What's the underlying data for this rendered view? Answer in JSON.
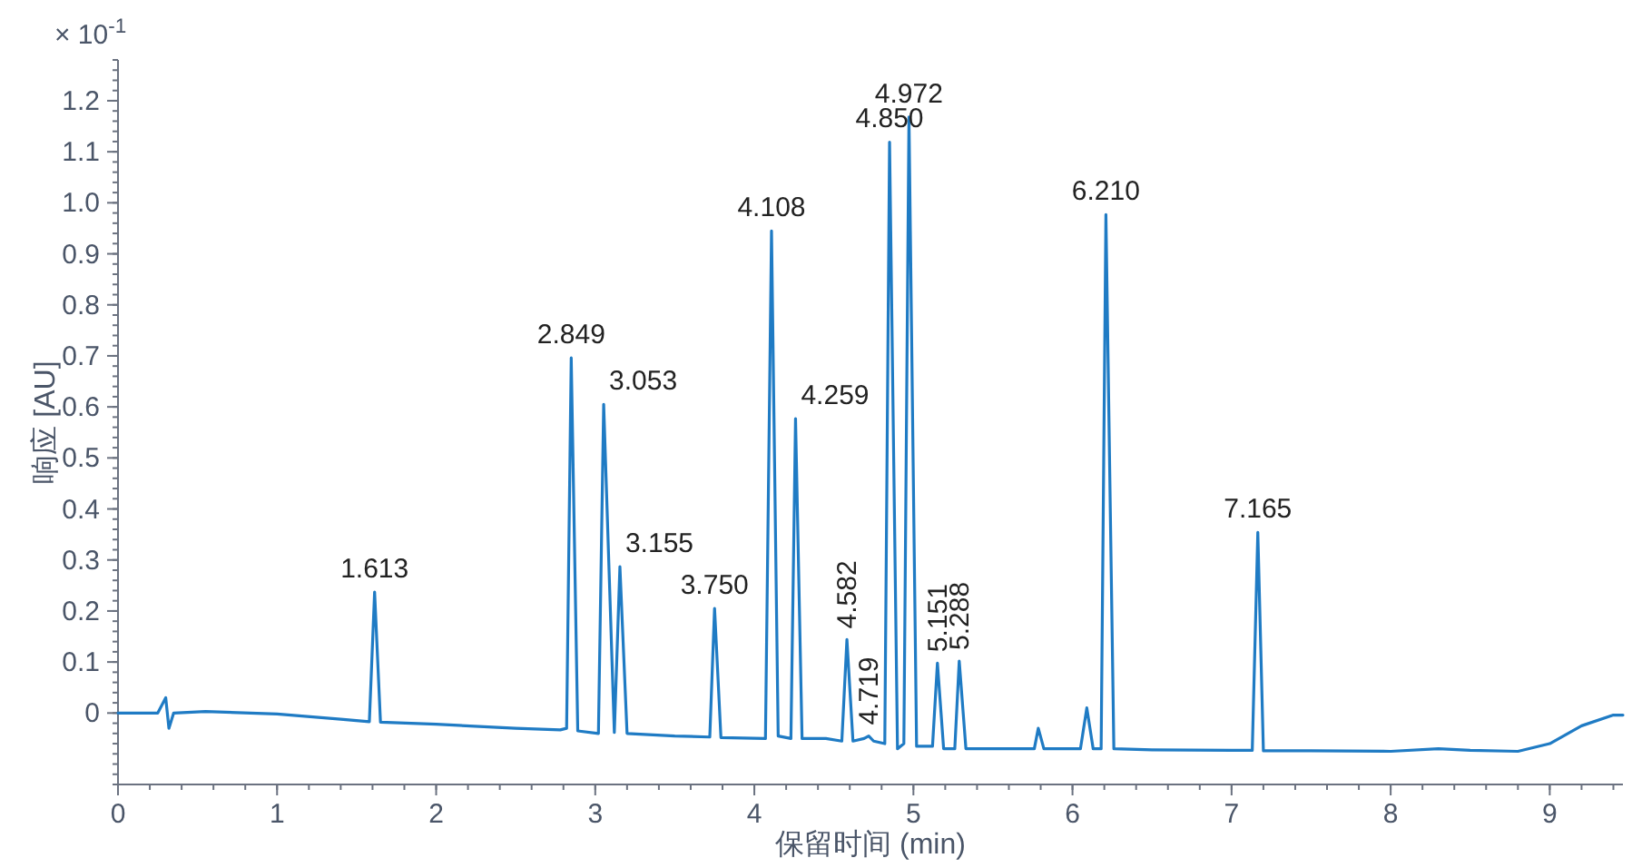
{
  "chart_data": {
    "type": "line",
    "xlabel": "保留时间 (min)",
    "ylabel": "响应 [AU]",
    "color": "#1f7bc4",
    "xlim": [
      0,
      9.46
    ],
    "ylim": [
      -0.14,
      1.28
    ],
    "xticks": [
      0,
      1,
      2,
      3,
      4,
      5,
      6,
      7,
      8,
      9
    ],
    "yticks": [
      0,
      0.1,
      0.2,
      0.3,
      0.4,
      0.5,
      0.6,
      0.7,
      0.8,
      0.9,
      {
        "value": 1,
        "label": "1.0"
      },
      1.1,
      1.2
    ],
    "x": [
      0,
      0.25,
      0.3,
      0.32,
      0.35,
      0.55,
      1.0,
      1.4,
      1.58,
      1.613,
      1.65,
      2.0,
      2.5,
      2.78,
      2.82,
      2.849,
      2.89,
      3.02,
      3.053,
      3.12,
      3.155,
      3.2,
      3.5,
      3.72,
      3.75,
      3.79,
      4.07,
      4.108,
      4.15,
      4.23,
      4.259,
      4.3,
      4.45,
      4.55,
      4.582,
      4.62,
      4.69,
      4.719,
      4.75,
      4.82,
      4.85,
      4.9,
      4.94,
      4.972,
      5.02,
      5.12,
      5.151,
      5.19,
      5.26,
      5.288,
      5.33,
      5.6,
      5.76,
      5.785,
      5.82,
      6.05,
      6.09,
      6.13,
      6.18,
      6.21,
      6.26,
      6.5,
      7.0,
      7.13,
      7.165,
      7.2,
      7.5,
      8.0,
      8.3,
      8.5,
      8.8,
      9.0,
      9.2,
      9.4,
      9.46
    ],
    "values": [
      0,
      0,
      0.03,
      -0.03,
      0,
      0.003,
      -0.002,
      -0.012,
      -0.017,
      0.237,
      -0.018,
      -0.022,
      -0.03,
      -0.033,
      -0.03,
      0.696,
      -0.035,
      -0.04,
      0.605,
      -0.038,
      0.287,
      -0.04,
      -0.045,
      -0.047,
      0.205,
      -0.048,
      -0.05,
      0.945,
      -0.045,
      -0.05,
      0.577,
      -0.05,
      -0.05,
      -0.055,
      0.144,
      -0.055,
      -0.05,
      -0.045,
      -0.055,
      -0.06,
      1.119,
      -0.07,
      -0.06,
      1.168,
      -0.065,
      -0.065,
      0.098,
      -0.07,
      -0.07,
      0.102,
      -0.07,
      -0.07,
      -0.07,
      -0.03,
      -0.07,
      -0.07,
      0.01,
      -0.07,
      -0.07,
      0.977,
      -0.07,
      -0.072,
      -0.073,
      -0.073,
      0.354,
      -0.074,
      -0.074,
      -0.075,
      -0.07,
      -0.073,
      -0.075,
      -0.06,
      -0.025,
      -0.004,
      -0.004
    ],
    "annotations": [
      "× 10$^{-1}$",
      {
        "text": "1.613",
        "x": 1.613,
        "y": 0.237
      },
      {
        "text": "2.849",
        "x": 2.849,
        "y": 0.696
      },
      {
        "text": "3.053",
        "x": 3.053,
        "y": 0.605
      },
      {
        "text": "3.155",
        "x": 3.155,
        "y": 0.287
      },
      {
        "text": "3.750",
        "x": 3.75,
        "y": 0.205
      },
      {
        "text": "4.108",
        "x": 4.108,
        "y": 0.945
      },
      {
        "text": "4.259",
        "x": 4.259,
        "y": 0.577
      },
      {
        "text": "4.582",
        "x": 4.582,
        "y": 0.144
      },
      {
        "text": "4.719",
        "x": 4.719,
        "y": -0.045
      },
      {
        "text": "4.850",
        "x": 4.85,
        "y": 1.119
      },
      {
        "text": "4.972",
        "x": 4.972,
        "y": 1.168
      },
      {
        "text": "5.151",
        "x": 5.151,
        "y": 0.098
      },
      {
        "text": "5.288",
        "x": 5.288,
        "y": 0.102
      },
      {
        "text": "6.210",
        "x": 6.21,
        "y": 0.977
      },
      {
        "text": "7.165",
        "x": 7.165,
        "y": 0.354
      }
    ]
  }
}
